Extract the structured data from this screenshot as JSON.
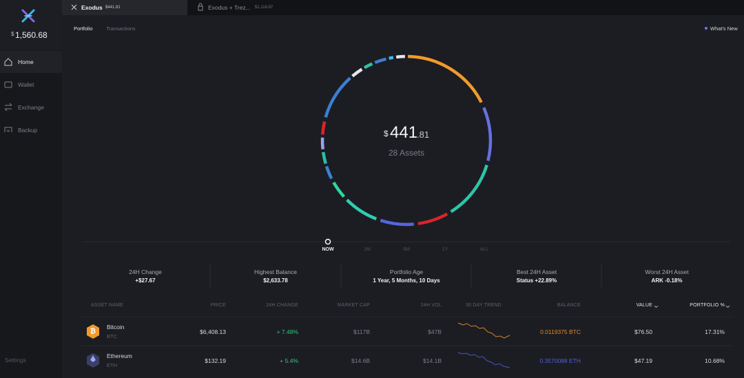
{
  "sidebar": {
    "currency": "$",
    "balance": "1,560.68",
    "nav": [
      "Home",
      "Wallet",
      "Exchange",
      "Backup"
    ],
    "settings": "Settings"
  },
  "tabs": [
    {
      "name": "Exodus",
      "balance": "$441.81"
    },
    {
      "name": "Exodus + Trez...",
      "balance": "$1,118.87"
    }
  ],
  "subnav": [
    "Portfolio",
    "Transactions"
  ],
  "whats_new": "What's New",
  "portfolio": {
    "currency": "$",
    "amount": "441",
    "cents": ".81",
    "assets": "28 Assets"
  },
  "timeline": [
    "NOW",
    "1M",
    "6M",
    "1Y",
    "ALL"
  ],
  "stats": [
    {
      "label": "24H Change",
      "value": "+$27.67"
    },
    {
      "label": "Highest Balance",
      "value": "$2,633.78"
    },
    {
      "label": "Portfolio Age",
      "value": "1 Year, 5 Months, 10 Days"
    },
    {
      "label": "Best 24H Asset",
      "value": "Status +22.89%"
    },
    {
      "label": "Worst 24H Asset",
      "value": "ARK -0.18%"
    }
  ],
  "table": {
    "headers": [
      "ASSET NAME",
      "PRICE",
      "24H CHANGE",
      "MARKET CAP",
      "24H VOL",
      "30 DAY TREND",
      "BALANCE",
      "VALUE",
      "PORTFOLIO %"
    ],
    "rows": [
      {
        "name": "Bitcoin",
        "ticker": "BTC",
        "price": "$6,408.13",
        "change": "+ 7.48%",
        "market_cap": "$117B",
        "volume": "$47B",
        "balance": "0.0119375 BTC",
        "value": "$76.50",
        "portfolio": "17.31%"
      },
      {
        "name": "Ethereum",
        "ticker": "ETH",
        "price": "$132.19",
        "change": "+ 5.4%",
        "market_cap": "$14.6B",
        "volume": "$14.1B",
        "balance": "0.3570088 ETH",
        "value": "$47.19",
        "portfolio": "10.68%"
      }
    ]
  }
}
